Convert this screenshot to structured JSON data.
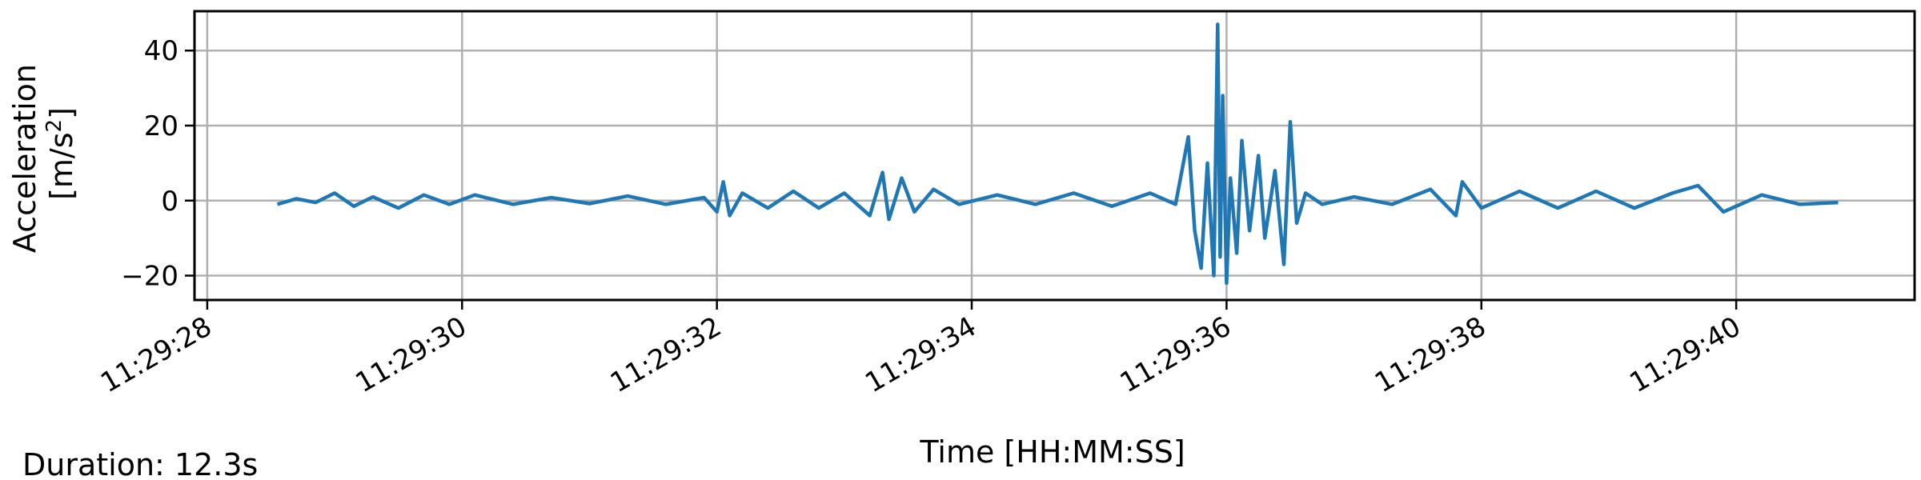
{
  "chart_data": {
    "type": "line",
    "title": "",
    "xlabel": "Time [HH:MM:SS]",
    "ylabel_line1": "Acceleration",
    "ylabel_line2_prefix": "[m/s",
    "ylabel_line2_sup": "2",
    "ylabel_line2_suffix": "]",
    "xlim_seconds": [
      27.9,
      41.4
    ],
    "ylim": [
      -26.5,
      50.5
    ],
    "x_ticks": [
      {
        "value": 28,
        "label": "11:29:28"
      },
      {
        "value": 30,
        "label": "11:29:30"
      },
      {
        "value": 32,
        "label": "11:29:32"
      },
      {
        "value": 34,
        "label": "11:29:34"
      },
      {
        "value": 36,
        "label": "11:29:36"
      },
      {
        "value": 38,
        "label": "11:29:38"
      },
      {
        "value": 40,
        "label": "11:29:40"
      }
    ],
    "y_ticks": [
      {
        "value": 40,
        "label": "40"
      },
      {
        "value": 20,
        "label": "20"
      },
      {
        "value": 0,
        "label": "0"
      },
      {
        "value": -20,
        "label": "−20"
      }
    ],
    "grid": true,
    "legend": "none",
    "line_color": "#1f77b4",
    "series": [
      {
        "x": [
          28.55,
          28.7,
          28.85,
          29.0,
          29.15,
          29.3,
          29.5,
          29.7,
          29.9,
          30.1,
          30.4,
          30.7,
          31.0,
          31.3,
          31.6,
          31.9,
          32.0,
          32.05,
          32.1,
          32.2,
          32.4,
          32.6,
          32.8,
          33.0,
          33.2,
          33.3,
          33.35,
          33.45,
          33.55,
          33.7,
          33.9,
          34.2,
          34.5,
          34.8,
          35.1,
          35.4,
          35.6,
          35.7,
          35.75,
          35.8,
          35.85,
          35.9,
          35.93,
          35.95,
          35.97,
          36.0,
          36.03,
          36.08,
          36.12,
          36.18,
          36.25,
          36.3,
          36.38,
          36.45,
          36.5,
          36.55,
          36.62,
          36.75,
          37.0,
          37.3,
          37.6,
          37.8,
          37.85,
          38.0,
          38.3,
          38.6,
          38.9,
          39.2,
          39.5,
          39.7,
          39.9,
          40.2,
          40.5,
          40.8
        ],
        "y": [
          -1,
          0.5,
          -0.5,
          2,
          -1.5,
          1,
          -2,
          1.5,
          -1,
          1.5,
          -1,
          0.8,
          -0.8,
          1.2,
          -1,
          0.8,
          -3,
          5,
          -4,
          2,
          -2,
          2.5,
          -2,
          2,
          -4,
          7.5,
          -5,
          6,
          -3,
          3,
          -1,
          1.5,
          -1,
          2,
          -1.5,
          2,
          -1,
          17,
          -8,
          -18,
          10,
          -20,
          47,
          -15,
          28,
          -22,
          6,
          -14,
          16,
          -8,
          12,
          -10,
          8,
          -17,
          21,
          -6,
          2,
          -1,
          1,
          -1,
          3,
          -4,
          5,
          -2,
          2.5,
          -2,
          2.5,
          -2,
          2,
          4,
          -3,
          1.5,
          -1,
          -0.5
        ]
      }
    ],
    "annotation": "Duration: 12.3s"
  }
}
